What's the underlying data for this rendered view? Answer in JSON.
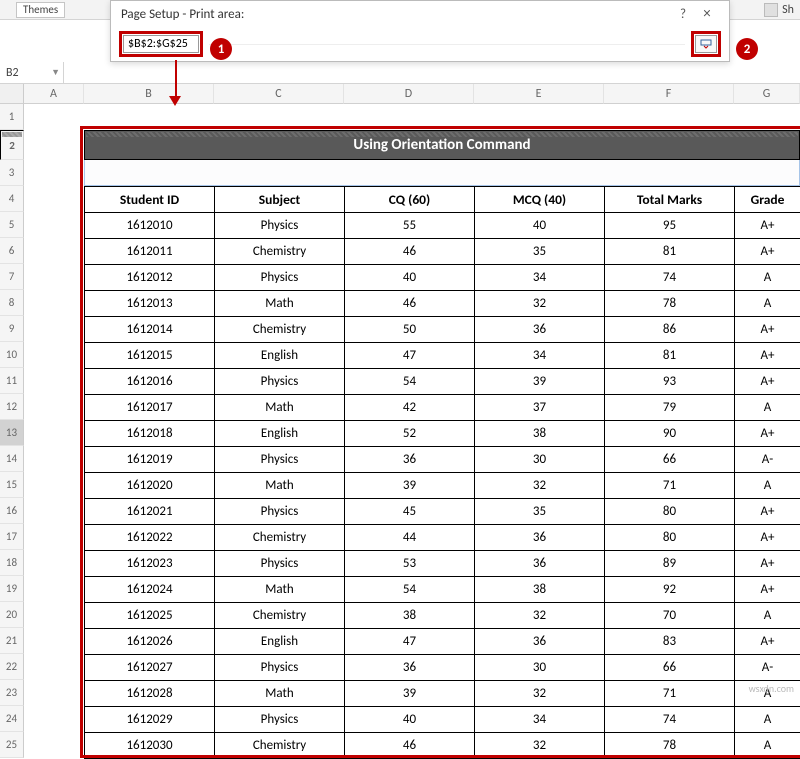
{
  "ribbon": {
    "themes_label": "Themes",
    "sh_label": "Sh"
  },
  "dialog": {
    "title": "Page Setup - Print area:",
    "help": "?",
    "close": "×",
    "input_value": "$B$2:$G$25",
    "collapse_icon": "⤓"
  },
  "callouts": {
    "one": "1",
    "two": "2"
  },
  "name_box": "B2",
  "columns": [
    "A",
    "B",
    "C",
    "D",
    "E",
    "F",
    "G"
  ],
  "row_numbers": [
    "1",
    "2",
    "3",
    "4",
    "5",
    "6",
    "7",
    "8",
    "9",
    "10",
    "11",
    "12",
    "13",
    "14",
    "15",
    "16",
    "17",
    "18",
    "19",
    "20",
    "21",
    "22",
    "23",
    "24",
    "25"
  ],
  "table": {
    "title": "Using Orientation Command",
    "headers": [
      "Student ID",
      "Subject",
      "CQ  (60)",
      "MCQ  (40)",
      "Total Marks",
      "Grade"
    ],
    "rows": [
      [
        "1612010",
        "Physics",
        "55",
        "40",
        "95",
        "A+"
      ],
      [
        "1612011",
        "Chemistry",
        "46",
        "35",
        "81",
        "A+"
      ],
      [
        "1612012",
        "Physics",
        "40",
        "34",
        "74",
        "A"
      ],
      [
        "1612013",
        "Math",
        "46",
        "32",
        "78",
        "A"
      ],
      [
        "1612014",
        "Chemistry",
        "50",
        "36",
        "86",
        "A+"
      ],
      [
        "1612015",
        "English",
        "47",
        "34",
        "81",
        "A+"
      ],
      [
        "1612016",
        "Physics",
        "54",
        "39",
        "93",
        "A+"
      ],
      [
        "1612017",
        "Math",
        "42",
        "37",
        "79",
        "A"
      ],
      [
        "1612018",
        "English",
        "52",
        "38",
        "90",
        "A+"
      ],
      [
        "1612019",
        "Physics",
        "36",
        "30",
        "66",
        "A-"
      ],
      [
        "1612020",
        "Math",
        "39",
        "32",
        "71",
        "A"
      ],
      [
        "1612021",
        "Physics",
        "45",
        "35",
        "80",
        "A+"
      ],
      [
        "1612022",
        "Chemistry",
        "44",
        "36",
        "80",
        "A+"
      ],
      [
        "1612023",
        "Physics",
        "53",
        "36",
        "89",
        "A+"
      ],
      [
        "1612024",
        "Math",
        "54",
        "38",
        "92",
        "A+"
      ],
      [
        "1612025",
        "Chemistry",
        "38",
        "32",
        "70",
        "A"
      ],
      [
        "1612026",
        "English",
        "47",
        "36",
        "83",
        "A+"
      ],
      [
        "1612027",
        "Physics",
        "36",
        "30",
        "66",
        "A-"
      ],
      [
        "1612028",
        "Math",
        "39",
        "32",
        "71",
        "A"
      ],
      [
        "1612029",
        "Physics",
        "40",
        "34",
        "74",
        "A"
      ],
      [
        "1612030",
        "Chemistry",
        "46",
        "32",
        "78",
        "A"
      ]
    ]
  },
  "colors": {
    "accent_red": "#c00000",
    "title_bg": "#595959"
  },
  "watermark": "wsxdn.com"
}
